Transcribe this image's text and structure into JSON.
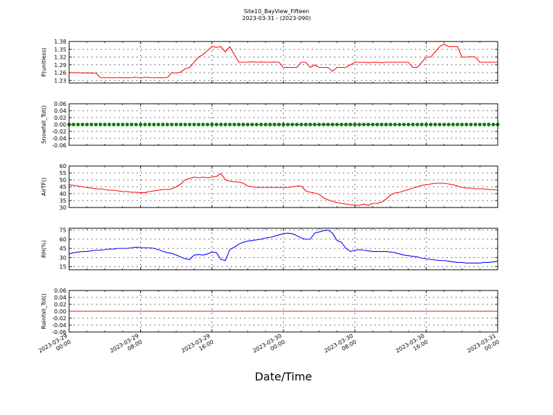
{
  "header": {
    "title": "Site10_BayView_Fifteen",
    "subtitle": "2023-03-31 - (2023-090)"
  },
  "x_axis": {
    "label": "Date/Time",
    "range_hours": [
      0,
      48
    ],
    "ticks": [
      {
        "hour": 0,
        "line1": "2023-03-29",
        "line2": "00:00"
      },
      {
        "hour": 8,
        "line1": "2023-03-29",
        "line2": "08:00"
      },
      {
        "hour": 16,
        "line1": "2023-03-29",
        "line2": "16:00"
      },
      {
        "hour": 24,
        "line1": "2023-03-30",
        "line2": "00:00"
      },
      {
        "hour": 32,
        "line1": "2023-03-30",
        "line2": "08:00"
      },
      {
        "hour": 40,
        "line1": "2023-03-30",
        "line2": "16:00"
      },
      {
        "hour": 48,
        "line1": "2023-03-31",
        "line2": "00:00"
      }
    ]
  },
  "chart_data": [
    {
      "type": "line",
      "ylabel": "P(unitless)",
      "ylim": [
        1.22,
        1.38
      ],
      "yticks": [
        1.23,
        1.26,
        1.29,
        1.32,
        1.35,
        1.38
      ],
      "color": "#ff0000",
      "x": [
        0,
        0.5,
        1,
        1.5,
        2,
        2.5,
        3,
        3.5,
        4,
        4.5,
        5,
        5.5,
        6,
        6.5,
        7,
        7.5,
        8,
        8.5,
        9,
        9.5,
        10,
        10.5,
        11,
        11.5,
        12,
        12.5,
        13,
        13.5,
        14,
        14.5,
        15,
        15.5,
        16,
        16.5,
        17,
        17.5,
        18,
        18.5,
        19,
        19.5,
        20,
        20.5,
        21,
        21.5,
        22,
        22.5,
        23,
        23.5,
        24,
        24.5,
        25,
        25.5,
        26,
        26.5,
        27,
        27.5,
        28,
        28.5,
        29,
        29.5,
        30,
        30.5,
        31,
        31.5,
        32,
        32.5,
        33,
        33.5,
        34,
        34.5,
        35,
        35.5,
        36,
        36.5,
        37,
        37.5,
        38,
        38.5,
        39,
        39.5,
        40,
        40.5,
        41,
        41.5,
        42,
        42.5,
        43,
        43.5,
        44,
        44.5,
        45,
        45.5,
        46,
        46.5,
        47,
        47.5,
        48
      ],
      "y": [
        1.261,
        1.259,
        1.26,
        1.258,
        1.259,
        1.258,
        1.258,
        1.241,
        1.24,
        1.241,
        1.24,
        1.241,
        1.24,
        1.24,
        1.241,
        1.242,
        1.24,
        1.242,
        1.241,
        1.24,
        1.241,
        1.24,
        1.241,
        1.26,
        1.258,
        1.262,
        1.275,
        1.28,
        1.3,
        1.32,
        1.33,
        1.345,
        1.36,
        1.358,
        1.36,
        1.34,
        1.36,
        1.33,
        1.3,
        1.3,
        1.3,
        1.302,
        1.3,
        1.301,
        1.3,
        1.3,
        1.301,
        1.3,
        1.28,
        1.28,
        1.28,
        1.28,
        1.3,
        1.3,
        1.28,
        1.29,
        1.28,
        1.28,
        1.28,
        1.265,
        1.28,
        1.28,
        1.28,
        1.29,
        1.3,
        1.3,
        1.3,
        1.298,
        1.3,
        1.3,
        1.298,
        1.3,
        1.3,
        1.3,
        1.3,
        1.3,
        1.3,
        1.28,
        1.28,
        1.3,
        1.32,
        1.32,
        1.34,
        1.36,
        1.37,
        1.36,
        1.36,
        1.36,
        1.32,
        1.32,
        1.322,
        1.32,
        1.3,
        1.3,
        1.3,
        1.3,
        1.3
      ]
    },
    {
      "type": "scatter",
      "ylabel": "Snowfall_Tot()",
      "ylim": [
        -0.06,
        0.06
      ],
      "yticks": [
        -0.06,
        -0.04,
        -0.02,
        0.0,
        0.02,
        0.04,
        0.06
      ],
      "color": "#008000",
      "x": [
        0,
        0.5,
        1,
        1.5,
        2,
        2.5,
        3,
        3.5,
        4,
        4.5,
        5,
        5.5,
        6,
        6.5,
        7,
        7.5,
        8,
        8.5,
        9,
        9.5,
        10,
        10.5,
        11,
        11.5,
        12,
        12.5,
        13,
        13.5,
        14,
        14.5,
        15,
        15.5,
        16,
        16.5,
        17,
        17.5,
        18,
        18.5,
        19,
        19.5,
        20,
        20.5,
        21,
        21.5,
        22,
        22.5,
        23,
        23.5,
        24,
        24.5,
        25,
        25.5,
        26,
        26.5,
        27,
        27.5,
        28,
        28.5,
        29,
        29.5,
        30,
        30.5,
        31,
        31.5,
        32,
        32.5,
        33,
        33.5,
        34,
        34.5,
        35,
        35.5,
        36,
        36.5,
        37,
        37.5,
        38,
        38.5,
        39,
        39.5,
        40,
        40.5,
        41,
        41.5,
        42,
        42.5,
        43,
        43.5,
        44,
        44.5,
        45,
        45.5,
        46,
        46.5,
        47,
        47.5,
        48
      ],
      "y": [
        0,
        0,
        0,
        0,
        0,
        0,
        0,
        0,
        0,
        0,
        0,
        0,
        0,
        0,
        0,
        0,
        0,
        0,
        0,
        0,
        0,
        0,
        0,
        0,
        0,
        0,
        0,
        0,
        0,
        0,
        0,
        0,
        0,
        0,
        0,
        0,
        0,
        0,
        0,
        0,
        0,
        0,
        0,
        0,
        0,
        0,
        0,
        0,
        0,
        0,
        0,
        0,
        0,
        0,
        0,
        0,
        0,
        0,
        0,
        0,
        0,
        0,
        0,
        0,
        0,
        0,
        0,
        0,
        0,
        0,
        0,
        0,
        0,
        0,
        0,
        0,
        0,
        0,
        0,
        0,
        0,
        0,
        0,
        0,
        0,
        0,
        0,
        0,
        0,
        0,
        0,
        0,
        0,
        0,
        0,
        0,
        0
      ]
    },
    {
      "type": "line",
      "ylabel": "AirTF()",
      "ylim": [
        30,
        60
      ],
      "yticks": [
        30,
        35,
        40,
        45,
        50,
        55,
        60
      ],
      "color": "#ff0000",
      "x": [
        0,
        0.5,
        1,
        1.5,
        2,
        2.5,
        3,
        3.5,
        4,
        4.5,
        5,
        5.5,
        6,
        6.5,
        7,
        7.5,
        8,
        8.5,
        9,
        9.5,
        10,
        10.5,
        11,
        11.5,
        12,
        12.5,
        13,
        13.5,
        14,
        14.5,
        15,
        15.5,
        16,
        16.5,
        17,
        17.5,
        18,
        18.5,
        19,
        19.5,
        20,
        20.5,
        21,
        21.5,
        22,
        22.5,
        23,
        23.5,
        24,
        24.5,
        25,
        25.5,
        26,
        26.5,
        27,
        27.5,
        28,
        28.5,
        29,
        29.5,
        30,
        30.5,
        31,
        31.5,
        32,
        32.5,
        33,
        33.5,
        34,
        34.5,
        35,
        35.5,
        36,
        36.5,
        37,
        37.5,
        38,
        38.5,
        39,
        39.5,
        40,
        40.5,
        41,
        41.5,
        42,
        42.5,
        43,
        43.5,
        44,
        44.5,
        45,
        45.5,
        46,
        46.5,
        47,
        47.5,
        48
      ],
      "y": [
        46.5,
        46,
        45.5,
        45,
        44.5,
        44,
        43.5,
        43.5,
        43,
        42.5,
        42.5,
        42,
        41.5,
        41.5,
        41,
        41,
        40.8,
        40.8,
        41.5,
        42,
        42.5,
        43,
        43,
        43.5,
        45,
        47,
        50,
        51,
        52,
        51.5,
        52,
        51.5,
        52,
        52.5,
        54.5,
        50,
        49,
        48.5,
        48.5,
        47.5,
        45.5,
        45,
        44.5,
        44.5,
        44.5,
        44.5,
        44.5,
        44.5,
        44.5,
        44.5,
        45,
        45.5,
        45.5,
        42,
        41,
        40.5,
        39.5,
        37,
        35.5,
        34.5,
        33.5,
        33,
        32.5,
        32,
        31.8,
        31.5,
        32.5,
        31.5,
        33,
        33,
        34,
        36,
        39,
        40.5,
        41,
        42,
        43,
        44,
        45,
        46,
        46.5,
        47,
        47.5,
        47.5,
        47.5,
        47,
        46.5,
        45.5,
        44.5,
        44,
        44,
        43.5,
        43.5,
        43.5,
        43,
        43,
        42.5
      ]
    },
    {
      "type": "line",
      "ylabel": "RH(%)",
      "ylim": [
        10,
        78
      ],
      "yticks": [
        15,
        30,
        45,
        60,
        75
      ],
      "color": "#0000ff",
      "x": [
        0,
        0.5,
        1,
        1.5,
        2,
        2.5,
        3,
        3.5,
        4,
        4.5,
        5,
        5.5,
        6,
        6.5,
        7,
        7.5,
        8,
        8.5,
        9,
        9.5,
        10,
        10.5,
        11,
        11.5,
        12,
        12.5,
        13,
        13.5,
        14,
        14.5,
        15,
        15.5,
        16,
        16.5,
        17,
        17.5,
        18,
        18.5,
        19,
        19.5,
        20,
        20.5,
        21,
        21.5,
        22,
        22.5,
        23,
        23.5,
        24,
        24.5,
        25,
        25.5,
        26,
        26.5,
        27,
        27.5,
        28,
        28.5,
        29,
        29.5,
        30,
        30.5,
        31,
        31.5,
        32,
        32.5,
        33,
        33.5,
        34,
        34.5,
        35,
        35.5,
        36,
        36.5,
        37,
        37.5,
        38,
        38.5,
        39,
        39.5,
        40,
        40.5,
        41,
        41.5,
        42,
        42.5,
        43,
        43.5,
        44,
        44.5,
        45,
        45.5,
        46,
        46.5,
        47,
        47.5,
        48
      ],
      "y": [
        36,
        38,
        39,
        40,
        40,
        41,
        42,
        42,
        43,
        44,
        44,
        45,
        45,
        45,
        46,
        47,
        46,
        46,
        46,
        45,
        43,
        40,
        38,
        37,
        34,
        31,
        28,
        27,
        34,
        35,
        34,
        36,
        39,
        38,
        27,
        25,
        43,
        47,
        52,
        55,
        57,
        58,
        59,
        60,
        62,
        63,
        65,
        67,
        69,
        70,
        69,
        66,
        62,
        60,
        60,
        70,
        72,
        74,
        75,
        70,
        58,
        55,
        45,
        40,
        42,
        43,
        42,
        41,
        40,
        40,
        40,
        40,
        39,
        38,
        36,
        34,
        33,
        32,
        31,
        29,
        28,
        27,
        26,
        25,
        25,
        24,
        23,
        22,
        22,
        21,
        21,
        21,
        21,
        22,
        22,
        23,
        24
      ]
    },
    {
      "type": "line",
      "ylabel": "Rainfall_Tot()",
      "ylim": [
        -0.06,
        0.06
      ],
      "yticks": [
        -0.06,
        -0.04,
        -0.02,
        0.0,
        0.02,
        0.04,
        0.06
      ],
      "color": "#ff0000",
      "x": [
        0,
        48
      ],
      "y": [
        0,
        0
      ]
    }
  ]
}
